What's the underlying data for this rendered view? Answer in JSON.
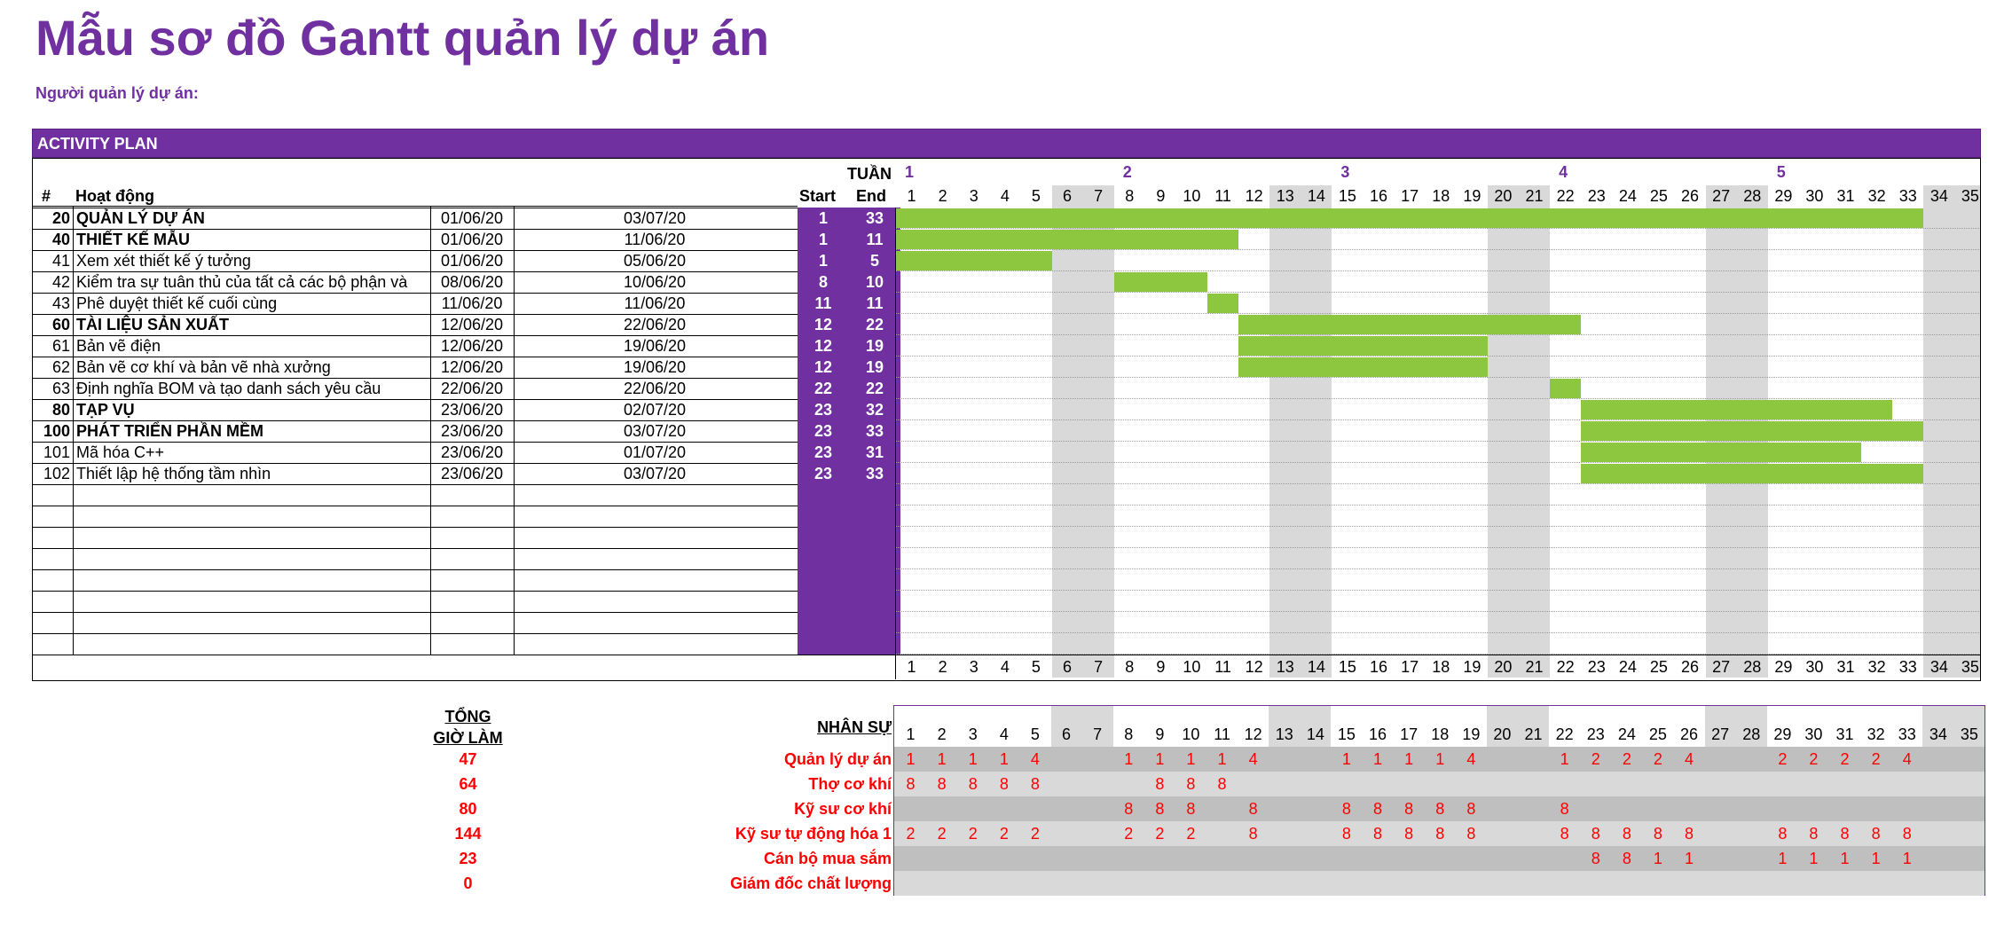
{
  "title": "Mẫu sơ đồ Gantt quản lý dự án",
  "pm_label": "Người quản lý dự án:",
  "plan_title": "ACTIVITY PLAN",
  "col_headers": {
    "num": "#",
    "activity": "Hoạt động",
    "week": "TUẦN",
    "start": "Start",
    "end": "End"
  },
  "weeks": [
    {
      "label": "1",
      "day": 1
    },
    {
      "label": "2",
      "day": 8
    },
    {
      "label": "3",
      "day": 15
    },
    {
      "label": "4",
      "day": 22
    },
    {
      "label": "5",
      "day": 29
    }
  ],
  "days": [
    "1",
    "2",
    "3",
    "4",
    "5",
    "6",
    "7",
    "8",
    "9",
    "10",
    "11",
    "12",
    "13",
    "14",
    "15",
    "16",
    "17",
    "18",
    "19",
    "20",
    "21",
    "22",
    "23",
    "24",
    "25",
    "26",
    "27",
    "28",
    "29",
    "30",
    "31",
    "32",
    "33",
    "34",
    "35"
  ],
  "weekend_days": [
    6,
    7,
    13,
    14,
    20,
    21,
    27,
    28,
    34,
    35
  ],
  "tasks": [
    {
      "id": "20",
      "name": "QUẢN LÝ DỰ ÁN",
      "start_date": "01/06/20",
      "end_date": "03/07/20",
      "start": 1,
      "end": 33,
      "bold": true
    },
    {
      "id": "40",
      "name": "THIẾT KẾ MẪU",
      "start_date": "01/06/20",
      "end_date": "11/06/20",
      "start": 1,
      "end": 11,
      "bold": true
    },
    {
      "id": "41",
      "name": "Xem xét thiết kế ý tưởng",
      "start_date": "01/06/20",
      "end_date": "05/06/20",
      "start": 1,
      "end": 5,
      "bold": false
    },
    {
      "id": "42",
      "name": "Kiểm tra sự tuân thủ của tất cả các bộ phận và",
      "start_date": "08/06/20",
      "end_date": "10/06/20",
      "start": 8,
      "end": 10,
      "bold": false
    },
    {
      "id": "43",
      "name": "Phê duyệt thiết kế cuối cùng",
      "start_date": "11/06/20",
      "end_date": "11/06/20",
      "start": 11,
      "end": 11,
      "bold": false
    },
    {
      "id": "60",
      "name": "TÀI LIỆU SẢN XUẤT",
      "start_date": "12/06/20",
      "end_date": "22/06/20",
      "start": 12,
      "end": 22,
      "bold": true
    },
    {
      "id": "61",
      "name": "Bản vẽ điện",
      "start_date": "12/06/20",
      "end_date": "19/06/20",
      "start": 12,
      "end": 19,
      "bold": false
    },
    {
      "id": "62",
      "name": "Bản vẽ cơ khí và bản vẽ nhà xưởng",
      "start_date": "12/06/20",
      "end_date": "19/06/20",
      "start": 12,
      "end": 19,
      "bold": false
    },
    {
      "id": "63",
      "name": "Định nghĩa BOM và tạo danh sách yêu cầu",
      "start_date": "22/06/20",
      "end_date": "22/06/20",
      "start": 22,
      "end": 22,
      "bold": false
    },
    {
      "id": "80",
      "name": "TẠP VỤ",
      "start_date": "23/06/20",
      "end_date": "02/07/20",
      "start": 23,
      "end": 32,
      "bold": true
    },
    {
      "id": "100",
      "name": "PHÁT TRIỂN PHẦN MỀM",
      "start_date": "23/06/20",
      "end_date": "03/07/20",
      "start": 23,
      "end": 33,
      "bold": true
    },
    {
      "id": "101",
      "name": "Mã hóa C++",
      "start_date": "23/06/20",
      "end_date": "01/07/20",
      "start": 23,
      "end": 31,
      "bold": false
    },
    {
      "id": "102",
      "name": "Thiết lập hệ thống tầm nhìn",
      "start_date": "23/06/20",
      "end_date": "03/07/20",
      "start": 23,
      "end": 33,
      "bold": false
    }
  ],
  "empty_rows": 8,
  "colors": {
    "brand": "#7030a0",
    "bar": "#8dc63f",
    "weekend": "#d9d9d9",
    "staff_text": "#ff0000"
  },
  "staff": {
    "total_label_1": "TỔNG",
    "total_label_2": "GIỜ LÀM",
    "header": "NHÂN SỰ",
    "rows": [
      {
        "total": "47",
        "name": "Quản lý dự án",
        "values": {
          "1": "1",
          "2": "1",
          "3": "1",
          "4": "1",
          "5": "4",
          "8": "1",
          "9": "1",
          "10": "1",
          "11": "1",
          "12": "4",
          "15": "1",
          "16": "1",
          "17": "1",
          "18": "1",
          "19": "4",
          "22": "1",
          "23": "2",
          "24": "2",
          "25": "2",
          "26": "4",
          "29": "2",
          "30": "2",
          "31": "2",
          "32": "2",
          "33": "4"
        }
      },
      {
        "total": "64",
        "name": "Thợ cơ khí",
        "values": {
          "1": "8",
          "2": "8",
          "3": "8",
          "4": "8",
          "5": "8",
          "9": "8",
          "10": "8",
          "11": "8"
        }
      },
      {
        "total": "80",
        "name": "Kỹ sư cơ khí",
        "values": {
          "8": "8",
          "9": "8",
          "10": "8",
          "12": "8",
          "15": "8",
          "16": "8",
          "17": "8",
          "18": "8",
          "19": "8",
          "22": "8"
        }
      },
      {
        "total": "144",
        "name": "Kỹ sư tự động hóa 1",
        "values": {
          "1": "2",
          "2": "2",
          "3": "2",
          "4": "2",
          "5": "2",
          "8": "2",
          "9": "2",
          "10": "2",
          "12": "8",
          "15": "8",
          "16": "8",
          "17": "8",
          "18": "8",
          "19": "8",
          "22": "8",
          "23": "8",
          "24": "8",
          "25": "8",
          "26": "8",
          "29": "8",
          "30": "8",
          "31": "8",
          "32": "8",
          "33": "8"
        }
      },
      {
        "total": "23",
        "name": "Cán bộ mua sắm",
        "values": {
          "23": "8",
          "24": "8",
          "25": "1",
          "26": "1",
          "29": "1",
          "30": "1",
          "31": "1",
          "32": "1",
          "33": "1"
        }
      },
      {
        "total": "0",
        "name": "Giám đốc chất lượng",
        "values": {}
      }
    ]
  }
}
